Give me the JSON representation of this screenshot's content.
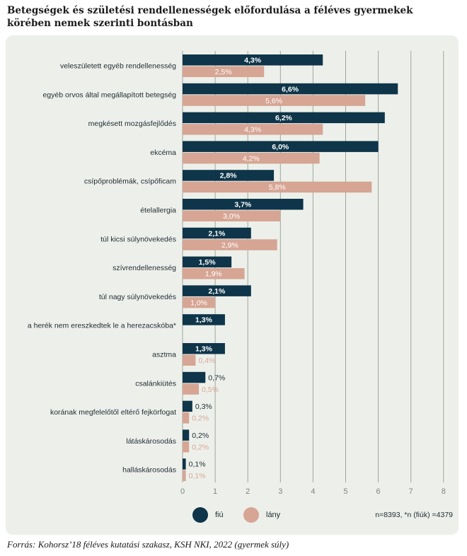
{
  "title": "Betegségek és születési rendellenességek előfordulása a féléves gyermekek körében nemek szerinti bontásban",
  "source": "Forrás: Kohorsz’18 féléves kutatási szakasz, KSH NKI, 2022 (gyermek súly)",
  "note": "n=8393, *n (fiúk) =4379",
  "colors": {
    "fiu": "#0e3549",
    "lany": "#d6a594",
    "panel": "#edf0ea",
    "grid": "#9ea69c",
    "text": "#1e2a33"
  },
  "chart_data": {
    "type": "bar",
    "orientation": "horizontal",
    "categories": [
      "veleszületett egyéb rendellenesség",
      "egyéb orvos által megállapított betegség",
      "megkésett mozgásfejlődés",
      "ekcéma",
      "csípőproblémák, csípőficam",
      "ételallergia",
      "túl kicsi súlynövekedés",
      "szívrendellenesség",
      "túl nagy súlynövekedés",
      "a herék nem ereszkedtek le a herezacskóba*",
      "asztma",
      "csalánkiütés",
      "korának megfelelőtől eltérő fejkörfogat",
      "látáskárosodás",
      "halláskárosodás"
    ],
    "series": [
      {
        "name": "fiú",
        "values": [
          4.3,
          6.6,
          6.2,
          6.0,
          2.8,
          3.7,
          2.1,
          1.5,
          2.1,
          1.3,
          1.3,
          0.7,
          0.3,
          0.2,
          0.1
        ],
        "labels": [
          "4,3%",
          "6,6%",
          "6,2%",
          "6,0%",
          "2,8%",
          "3,7%",
          "2,1%",
          "1,5%",
          "2,1%",
          "1,3%",
          "1,3%",
          "0,7%",
          "0,3%",
          "0,2%",
          "0,1%"
        ]
      },
      {
        "name": "lány",
        "values": [
          2.5,
          5.6,
          4.3,
          4.2,
          5.8,
          3.0,
          2.9,
          1.9,
          1.0,
          null,
          0.4,
          0.5,
          0.2,
          0.2,
          0.1
        ],
        "labels": [
          "2,5%",
          "5,6%",
          "4,3%",
          "4,2%",
          "5,8%",
          "3,0%",
          "2,9%",
          "1,9%",
          "1,0%",
          "",
          "0,4%",
          "0,5%",
          "0,2%",
          "0,2%",
          "0,1%"
        ]
      }
    ],
    "xlim": [
      0,
      8
    ],
    "xticks": [
      "0",
      "1",
      "2",
      "3",
      "4",
      "5",
      "6",
      "7",
      "8"
    ],
    "grid": true,
    "legend": "bottom-left"
  }
}
